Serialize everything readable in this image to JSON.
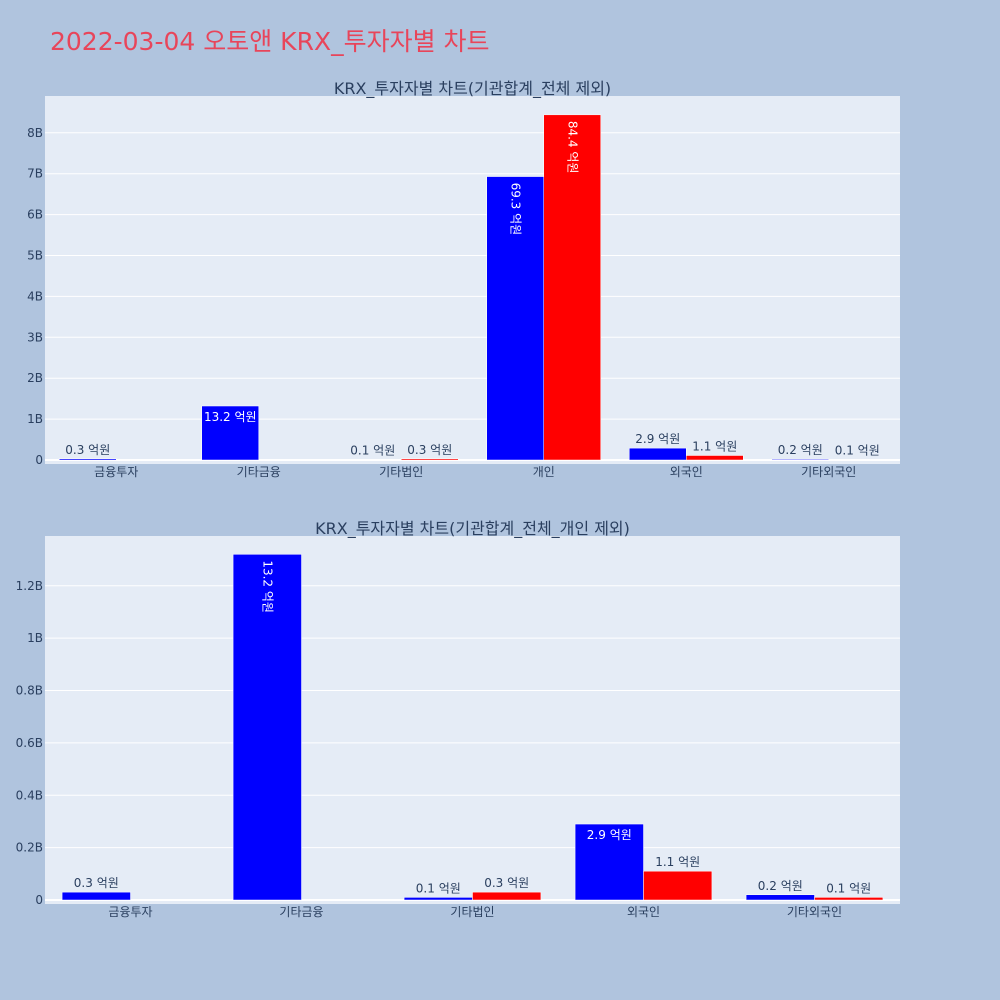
{
  "page_title": "2022-03-04 오토앤 KRX_투자자별 차트",
  "colors": {
    "buy": "#0000ff",
    "sell": "#ff0000",
    "title": "#e8455a",
    "background": "#b0c4de",
    "plot": "#e5ecf6"
  },
  "chart_data": [
    {
      "type": "bar",
      "title": "KRX_투자자별 차트(기관합계_전체 제외)",
      "categories": [
        "금융투자",
        "기타금융",
        "기타법인",
        "개인",
        "외국인",
        "기타외국인"
      ],
      "series": [
        {
          "color": "#0000ff",
          "values": [
            30000000,
            1320000000,
            10000000,
            6930000000,
            290000000,
            20000000
          ],
          "labels": [
            "0.3 억원",
            "13.2 억원",
            "0.1 억원",
            "69.3 억원",
            "2.9 억원",
            "0.2 억원"
          ]
        },
        {
          "color": "#ff0000",
          "values": [
            0,
            0,
            30000000,
            8440000000,
            110000000,
            10000000
          ],
          "labels": [
            "",
            "",
            "0.3 억원",
            "84.4 억원",
            "1.1 억원",
            "0.1 억원"
          ]
        }
      ],
      "yticks": [
        0,
        1000000000,
        2000000000,
        3000000000,
        4000000000,
        5000000000,
        6000000000,
        7000000000,
        8000000000
      ],
      "ytick_labels": [
        "0",
        "1B",
        "2B",
        "3B",
        "4B",
        "5B",
        "6B",
        "7B",
        "8B"
      ],
      "ylim": [
        0,
        8900000000
      ],
      "grid": true
    },
    {
      "type": "bar",
      "title": "KRX_투자자별 차트(기관합계_전체_개인 제외)",
      "categories": [
        "금융투자",
        "기타금융",
        "기타법인",
        "외국인",
        "기타외국인"
      ],
      "series": [
        {
          "color": "#0000ff",
          "values": [
            30000000,
            1320000000,
            10000000,
            290000000,
            20000000
          ],
          "labels": [
            "0.3 억원",
            "13.2 억원",
            "0.1 억원",
            "2.9 억원",
            "0.2 억원"
          ]
        },
        {
          "color": "#ff0000",
          "values": [
            0,
            0,
            30000000,
            110000000,
            10000000
          ],
          "labels": [
            "",
            "",
            "0.3 억원",
            "1.1 억원",
            "0.1 억원"
          ]
        }
      ],
      "yticks": [
        0,
        200000000,
        400000000,
        600000000,
        800000000,
        1000000000,
        1200000000
      ],
      "ytick_labels": [
        "0",
        "0.2B",
        "0.4B",
        "0.6B",
        "0.8B",
        "1B",
        "1.2B"
      ],
      "ylim": [
        0,
        1390000000
      ],
      "grid": true
    }
  ]
}
